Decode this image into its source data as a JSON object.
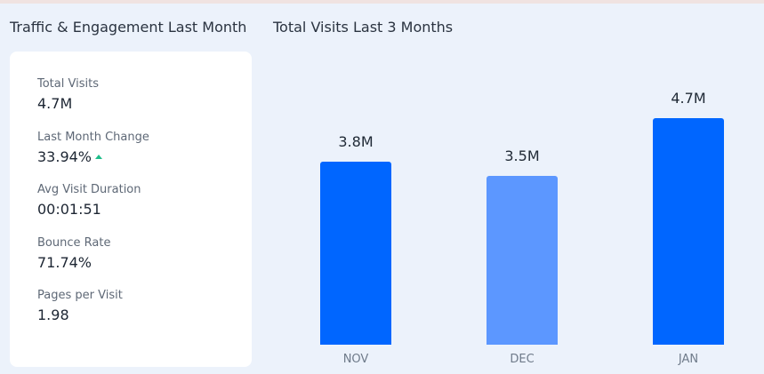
{
  "header": {
    "left_title": "Traffic & Engagement Last Month",
    "right_title": "Total Visits Last 3 Months"
  },
  "metrics": [
    {
      "label": "Total Visits",
      "value": "4.7M"
    },
    {
      "label": "Last Month Change",
      "value": "33.94%",
      "trend": "up"
    },
    {
      "label": "Avg Visit Duration",
      "value": "00:01:51"
    },
    {
      "label": "Bounce Rate",
      "value": "71.74%"
    },
    {
      "label": "Pages per Visit",
      "value": "1.98"
    }
  ],
  "chart_data": {
    "type": "bar",
    "title": "Total Visits Last 3 Months",
    "categories": [
      "NOV",
      "DEC",
      "JAN"
    ],
    "values": [
      3.8,
      3.5,
      4.7
    ],
    "value_labels": [
      "3.8M",
      "3.5M",
      "4.7M"
    ],
    "unit": "M",
    "colors": [
      "#0066ff",
      "#5c97ff",
      "#0066ff"
    ],
    "ylim": [
      0,
      4.7
    ],
    "grid": false
  },
  "colors": {
    "background": "#ecf2fb",
    "card": "#ffffff",
    "trend_up": "#1fbd8a"
  }
}
